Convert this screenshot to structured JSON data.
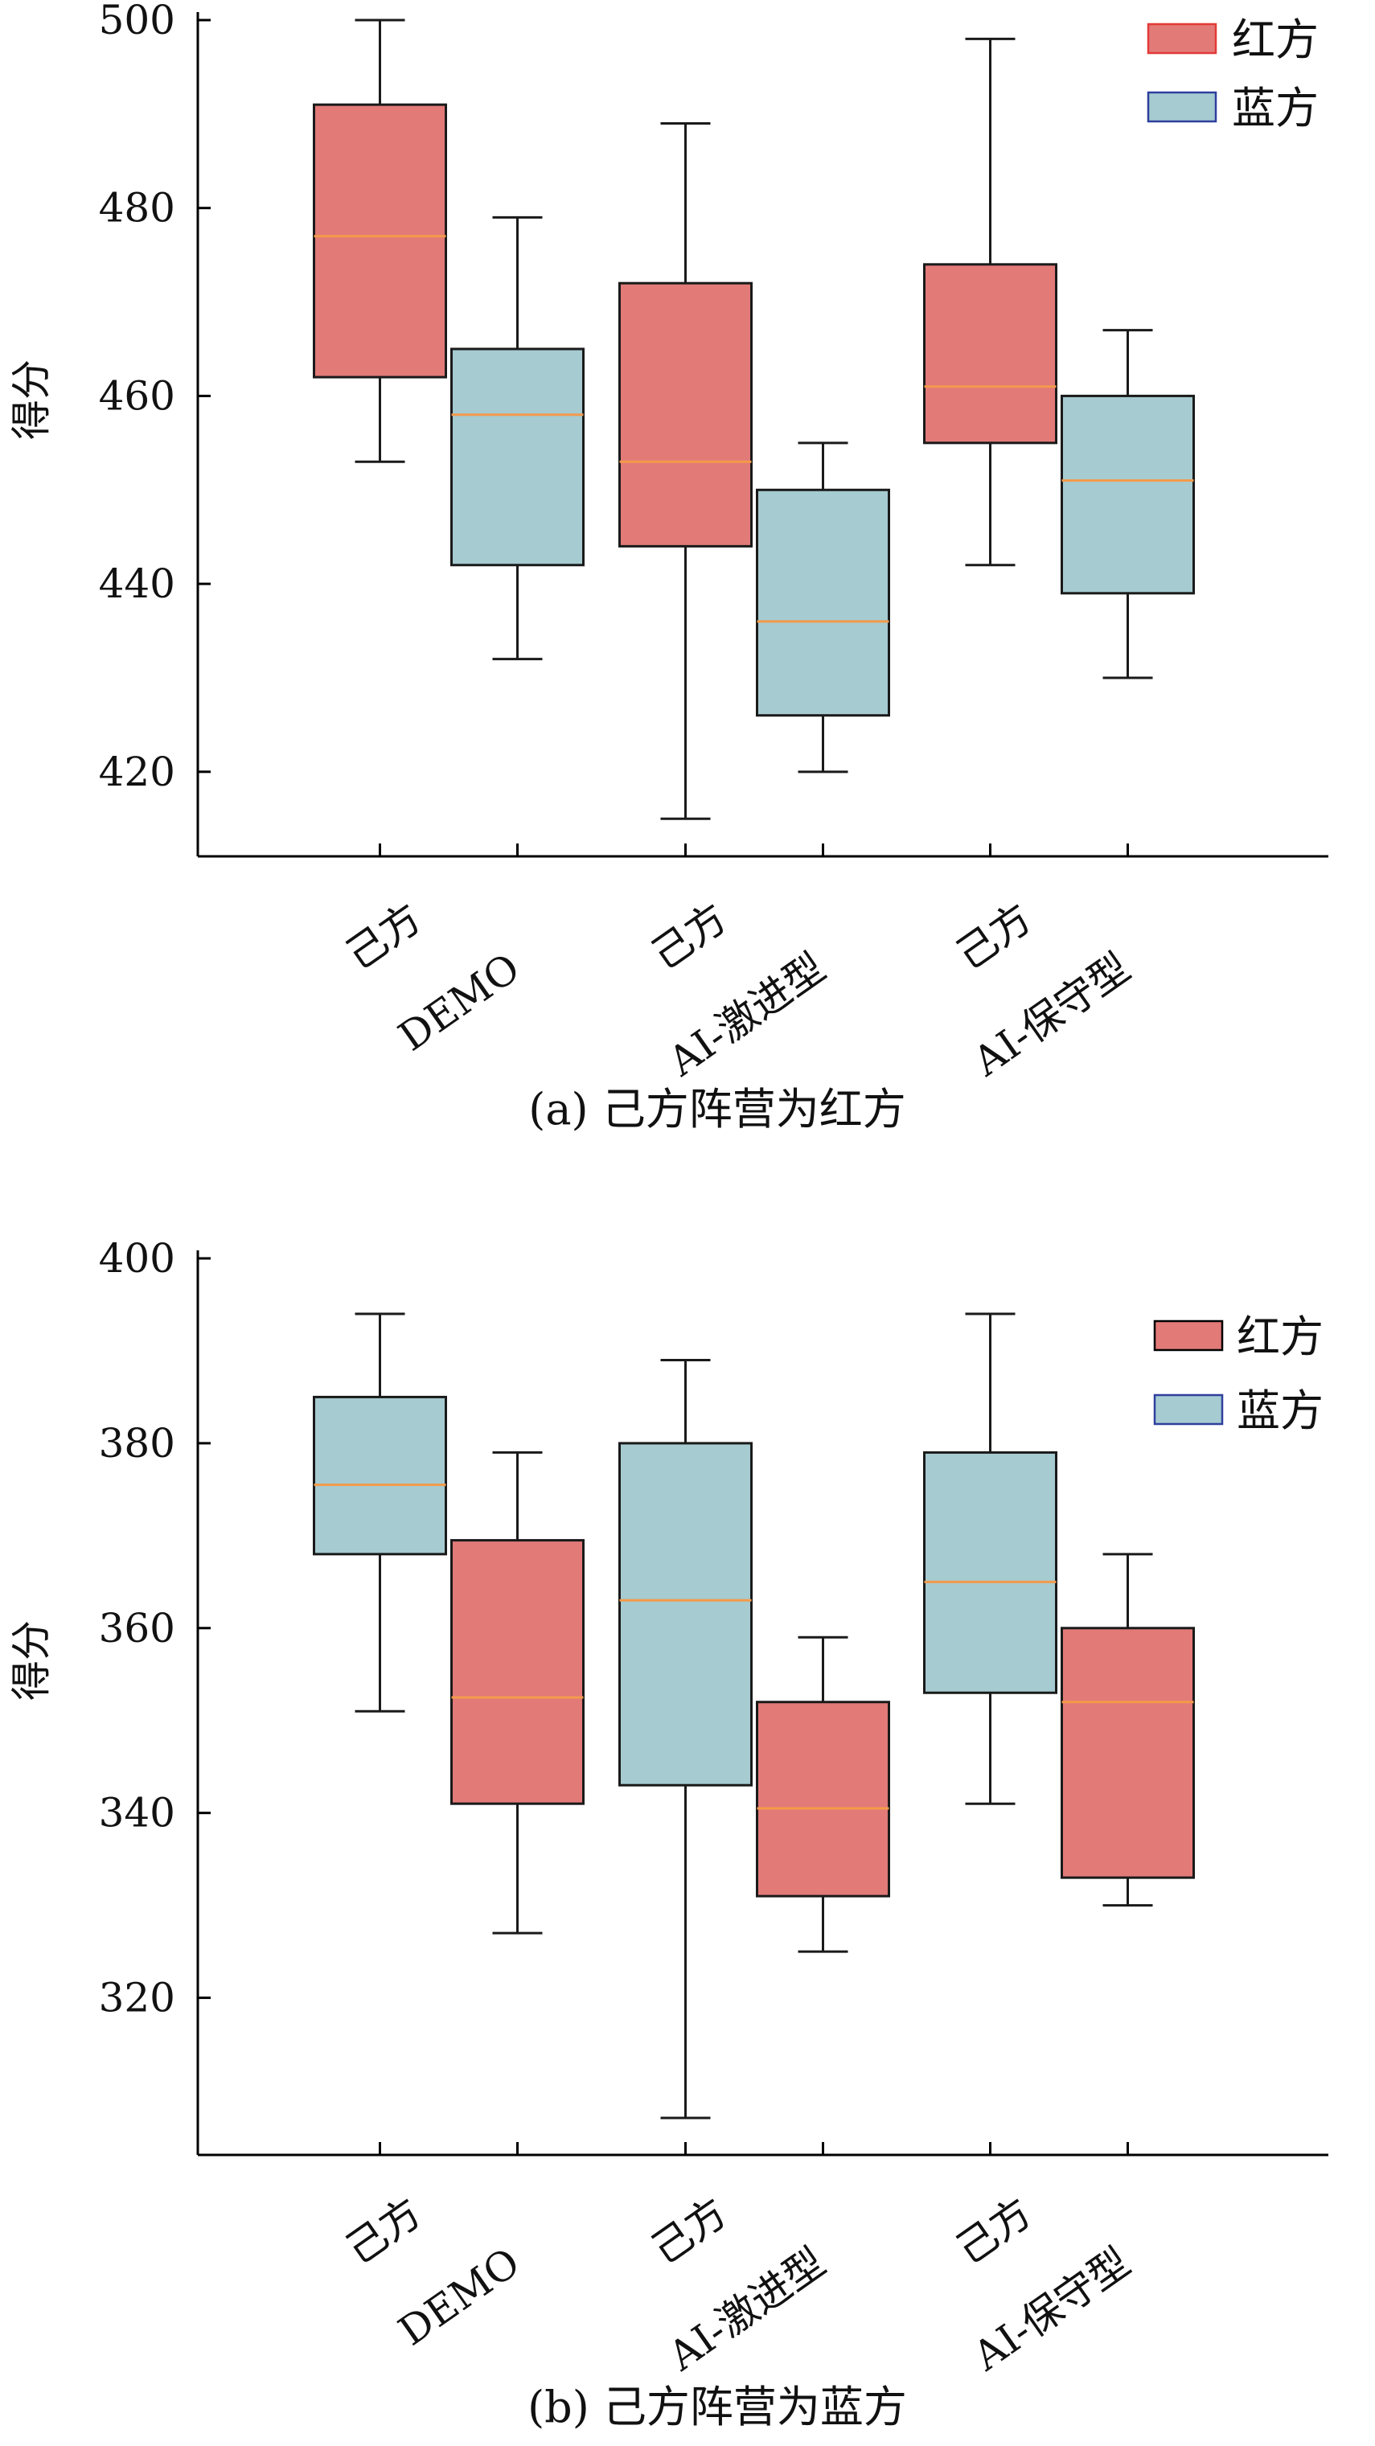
{
  "colors": {
    "red_box": "#e27a78",
    "blue_box": "#a6cbd1",
    "median": "#f39a4a",
    "legend_red_border": "#e33a3a",
    "legend_blue_border": "#2f3f9e",
    "axis": "#000000"
  },
  "chart_data": [
    {
      "type": "box",
      "id": "a",
      "caption": "(a) 己方阵营为红方",
      "ylabel": "得分",
      "ylim": [
        411,
        500
      ],
      "yticks": [
        420,
        440,
        460,
        480,
        500
      ],
      "groups": [
        {
          "line1": "己方",
          "line2": "DEMO"
        },
        {
          "line1": "己方",
          "line2": "AI-激进型"
        },
        {
          "line1": "己方",
          "line2": "AI-保守型"
        }
      ],
      "legend": [
        {
          "name": "红方",
          "color_key": "red_box",
          "border_key": "legend_red_border"
        },
        {
          "name": "蓝方",
          "color_key": "blue_box",
          "border_key": "legend_blue_border"
        }
      ],
      "legend_position": "top-right",
      "boxes": [
        {
          "series": "红方",
          "group": 0,
          "side": "left",
          "whisker_low": 453,
          "q1": 462,
          "median": 477,
          "q3": 491,
          "whisker_high": 500
        },
        {
          "series": "蓝方",
          "group": 0,
          "side": "right",
          "whisker_low": 432,
          "q1": 442,
          "median": 458,
          "q3": 465,
          "whisker_high": 479
        },
        {
          "series": "红方",
          "group": 1,
          "side": "left",
          "whisker_low": 415,
          "q1": 444,
          "median": 453,
          "q3": 472,
          "whisker_high": 489
        },
        {
          "series": "蓝方",
          "group": 1,
          "side": "right",
          "whisker_low": 420,
          "q1": 426,
          "median": 436,
          "q3": 450,
          "whisker_high": 455
        },
        {
          "series": "红方",
          "group": 2,
          "side": "left",
          "whisker_low": 442,
          "q1": 455,
          "median": 461,
          "q3": 474,
          "whisker_high": 498
        },
        {
          "series": "蓝方",
          "group": 2,
          "side": "right",
          "whisker_low": 430,
          "q1": 439,
          "median": 451,
          "q3": 460,
          "whisker_high": 467
        }
      ]
    },
    {
      "type": "box",
      "id": "b",
      "caption": "(b) 己方阵营为蓝方",
      "ylabel": "得分",
      "ylim": [
        303,
        400
      ],
      "yticks": [
        320,
        340,
        360,
        380,
        400
      ],
      "groups": [
        {
          "line1": "己方",
          "line2": "DEMO"
        },
        {
          "line1": "己方",
          "line2": "AI-激进型"
        },
        {
          "line1": "己方",
          "line2": "AI-保守型"
        }
      ],
      "legend": [
        {
          "name": "红方",
          "color_key": "red_box",
          "border_key": "axis"
        },
        {
          "name": "蓝方",
          "color_key": "blue_box",
          "border_key": "legend_blue_border"
        }
      ],
      "legend_position": "top-right",
      "boxes": [
        {
          "series": "蓝方",
          "group": 0,
          "side": "left",
          "whisker_low": 351,
          "q1": 368,
          "median": 375.5,
          "q3": 385,
          "whisker_high": 394
        },
        {
          "series": "红方",
          "group": 0,
          "side": "right",
          "whisker_low": 327,
          "q1": 341,
          "median": 352.5,
          "q3": 369.5,
          "whisker_high": 379
        },
        {
          "series": "蓝方",
          "group": 1,
          "side": "left",
          "whisker_low": 307,
          "q1": 343,
          "median": 363,
          "q3": 380,
          "whisker_high": 389
        },
        {
          "series": "红方",
          "group": 1,
          "side": "right",
          "whisker_low": 325,
          "q1": 331,
          "median": 340.5,
          "q3": 352,
          "whisker_high": 359
        },
        {
          "series": "蓝方",
          "group": 2,
          "side": "left",
          "whisker_low": 341,
          "q1": 353,
          "median": 365,
          "q3": 379,
          "whisker_high": 394
        },
        {
          "series": "红方",
          "group": 2,
          "side": "right",
          "whisker_low": 330,
          "q1": 333,
          "median": 352,
          "q3": 360,
          "whisker_high": 368
        }
      ]
    }
  ]
}
